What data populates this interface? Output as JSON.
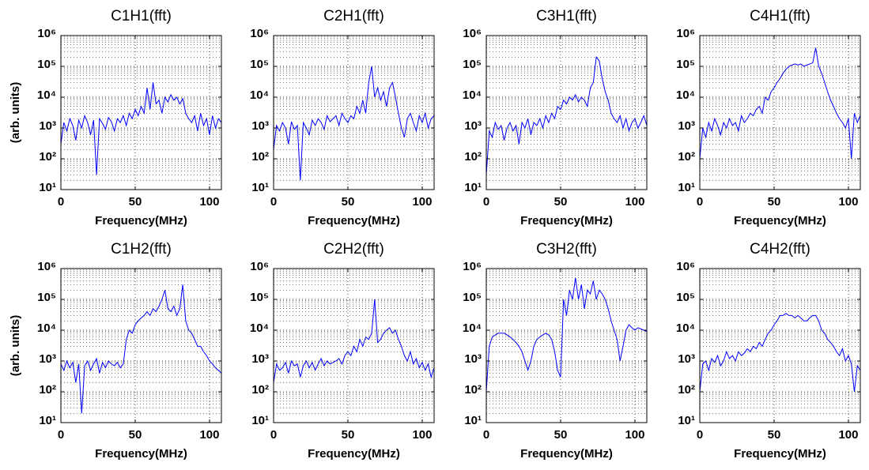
{
  "chart_data": [
    {
      "type": "line",
      "title": "C1H1(fft)",
      "xlabel": "Frequency(MHz)",
      "ylabel": "(arb. units)",
      "color": "#0000ff",
      "yscale": "log",
      "grid": true,
      "xlim": [
        0,
        108
      ],
      "xticks": [
        0,
        50,
        100
      ],
      "ylim": [
        10,
        1000000
      ],
      "yticks": [
        {
          "value": 10,
          "label": "10¹"
        },
        {
          "value": 100,
          "label": "10²"
        },
        {
          "value": 1000,
          "label": "10³"
        },
        {
          "value": 10000,
          "label": "10⁴"
        },
        {
          "value": 100000,
          "label": "10⁵"
        },
        {
          "value": 1000000,
          "label": "10⁶"
        }
      ],
      "x": [
        0,
        2,
        4,
        6,
        8,
        10,
        12,
        14,
        16,
        18,
        20,
        22,
        24,
        26,
        28,
        30,
        32,
        34,
        36,
        38,
        40,
        42,
        44,
        46,
        48,
        50,
        52,
        54,
        56,
        58,
        60,
        62,
        64,
        66,
        68,
        70,
        72,
        74,
        76,
        78,
        80,
        82,
        84,
        86,
        88,
        90,
        92,
        94,
        96,
        98,
        100,
        102,
        104,
        106,
        108
      ],
      "values": [
        300,
        1500,
        800,
        2000,
        1200,
        400,
        1800,
        1000,
        2500,
        1500,
        600,
        1800,
        30,
        2000,
        1400,
        900,
        2200,
        1600,
        800,
        2000,
        1500,
        2500,
        1200,
        3000,
        2000,
        4000,
        2500,
        5000,
        3000,
        20000,
        4000,
        30000,
        6000,
        8000,
        3000,
        10000,
        7000,
        12000,
        8000,
        10000,
        6000,
        9000,
        3000,
        2000,
        1500,
        2500,
        800,
        3000,
        1200,
        2000,
        600,
        2500,
        1000,
        2000,
        1500
      ]
    },
    {
      "type": "line",
      "title": "C2H1(fft)",
      "xlabel": "Frequency(MHz)",
      "color": "#0000ff",
      "yscale": "log",
      "grid": true,
      "xlim": [
        0,
        108
      ],
      "xticks": [
        0,
        50,
        100
      ],
      "ylim": [
        10,
        1000000
      ],
      "yticks": [
        {
          "value": 10,
          "label": "10¹"
        },
        {
          "value": 100,
          "label": "10²"
        },
        {
          "value": 1000,
          "label": "10³"
        },
        {
          "value": 10000,
          "label": "10⁴"
        },
        {
          "value": 100000,
          "label": "10⁵"
        },
        {
          "value": 1000000,
          "label": "10⁶"
        }
      ],
      "x": [
        0,
        2,
        4,
        6,
        8,
        10,
        12,
        14,
        16,
        18,
        20,
        22,
        24,
        26,
        28,
        30,
        32,
        34,
        36,
        38,
        40,
        42,
        44,
        46,
        48,
        50,
        52,
        54,
        56,
        58,
        60,
        62,
        64,
        66,
        68,
        70,
        72,
        74,
        76,
        78,
        80,
        82,
        84,
        86,
        88,
        90,
        92,
        94,
        96,
        98,
        100,
        102,
        104,
        106,
        108
      ],
      "values": [
        200,
        1200,
        800,
        1500,
        1000,
        300,
        1600,
        900,
        1200,
        20,
        1500,
        1000,
        600,
        1800,
        1200,
        2000,
        1500,
        900,
        2500,
        1600,
        2000,
        2500,
        1200,
        3000,
        2000,
        1500,
        2500,
        2000,
        5000,
        3000,
        8000,
        3000,
        30000,
        100000,
        10000,
        20000,
        8000,
        15000,
        5000,
        20000,
        30000,
        10000,
        3000,
        1000,
        500,
        2000,
        3000,
        1500,
        800,
        2500,
        1500,
        3000,
        1000,
        2000,
        2500
      ]
    },
    {
      "type": "line",
      "title": "C3H1(fft)",
      "xlabel": "Frequency(MHz)",
      "color": "#0000ff",
      "yscale": "log",
      "grid": true,
      "xlim": [
        0,
        108
      ],
      "xticks": [
        0,
        50,
        100
      ],
      "ylim": [
        10,
        1000000
      ],
      "yticks": [
        {
          "value": 10,
          "label": "10¹"
        },
        {
          "value": 100,
          "label": "10²"
        },
        {
          "value": 1000,
          "label": "10³"
        },
        {
          "value": 10000,
          "label": "10⁴"
        },
        {
          "value": 100000,
          "label": "10⁵"
        },
        {
          "value": 1000000,
          "label": "10⁶"
        }
      ],
      "x": [
        0,
        2,
        4,
        6,
        8,
        10,
        12,
        14,
        16,
        18,
        20,
        22,
        24,
        26,
        28,
        30,
        32,
        34,
        36,
        38,
        40,
        42,
        44,
        46,
        48,
        50,
        52,
        54,
        56,
        58,
        60,
        62,
        64,
        66,
        68,
        70,
        72,
        74,
        76,
        78,
        80,
        82,
        84,
        86,
        88,
        90,
        92,
        94,
        96,
        98,
        100,
        102,
        104,
        106,
        108
      ],
      "values": [
        30,
        800,
        500,
        1500,
        900,
        1200,
        400,
        1000,
        1500,
        800,
        1200,
        300,
        1500,
        1000,
        2000,
        600,
        1500,
        1200,
        2000,
        1000,
        2500,
        1500,
        3000,
        2000,
        5000,
        4000,
        8000,
        6000,
        10000,
        8000,
        12000,
        7000,
        10000,
        8000,
        5000,
        20000,
        30000,
        200000,
        150000,
        40000,
        15000,
        8000,
        3000,
        2000,
        1500,
        2500,
        1000,
        2000,
        800,
        1500,
        2000,
        1000,
        1500,
        2500,
        1200
      ]
    },
    {
      "type": "line",
      "title": "C4H1(fft)",
      "xlabel": "Frequency(MHz)",
      "color": "#0000ff",
      "yscale": "log",
      "grid": true,
      "xlim": [
        0,
        108
      ],
      "xticks": [
        0,
        50,
        100
      ],
      "ylim": [
        10,
        1000000
      ],
      "yticks": [
        {
          "value": 10,
          "label": "10¹"
        },
        {
          "value": 100,
          "label": "10²"
        },
        {
          "value": 1000,
          "label": "10³"
        },
        {
          "value": 10000,
          "label": "10⁴"
        },
        {
          "value": 100000,
          "label": "10⁵"
        },
        {
          "value": 1000000,
          "label": "10⁶"
        }
      ],
      "x": [
        0,
        2,
        4,
        6,
        8,
        10,
        12,
        14,
        16,
        18,
        20,
        22,
        24,
        26,
        28,
        30,
        32,
        34,
        36,
        38,
        40,
        42,
        44,
        46,
        48,
        50,
        52,
        54,
        56,
        58,
        60,
        62,
        64,
        66,
        68,
        70,
        72,
        74,
        76,
        78,
        80,
        82,
        84,
        86,
        88,
        90,
        92,
        94,
        96,
        98,
        100,
        102,
        104,
        106,
        108
      ],
      "values": [
        100,
        1000,
        500,
        1500,
        800,
        2000,
        1200,
        600,
        1500,
        1000,
        2000,
        1200,
        1500,
        800,
        2500,
        1500,
        2000,
        3000,
        2500,
        4000,
        5000,
        3000,
        10000,
        8000,
        15000,
        20000,
        30000,
        40000,
        60000,
        80000,
        100000,
        110000,
        120000,
        110000,
        120000,
        100000,
        110000,
        120000,
        130000,
        400000,
        100000,
        60000,
        30000,
        15000,
        8000,
        5000,
        3000,
        2000,
        1500,
        1000,
        2000,
        100,
        3000,
        1500,
        2500
      ]
    },
    {
      "type": "line",
      "title": "C1H2(fft)",
      "xlabel": "Frequency(MHz)",
      "ylabel": "(arb. units)",
      "color": "#0000ff",
      "yscale": "log",
      "grid": true,
      "xlim": [
        0,
        108
      ],
      "xticks": [
        0,
        50,
        100
      ],
      "ylim": [
        10,
        1000000
      ],
      "yticks": [
        {
          "value": 10,
          "label": "10¹"
        },
        {
          "value": 100,
          "label": "10²"
        },
        {
          "value": 1000,
          "label": "10³"
        },
        {
          "value": 10000,
          "label": "10⁴"
        },
        {
          "value": 100000,
          "label": "10⁵"
        },
        {
          "value": 1000000,
          "label": "10⁶"
        }
      ],
      "x": [
        0,
        2,
        4,
        6,
        8,
        10,
        12,
        14,
        16,
        18,
        20,
        22,
        24,
        26,
        28,
        30,
        32,
        34,
        36,
        38,
        40,
        42,
        44,
        46,
        48,
        50,
        52,
        54,
        56,
        58,
        60,
        62,
        64,
        66,
        68,
        70,
        72,
        74,
        76,
        78,
        80,
        82,
        84,
        86,
        88,
        90,
        92,
        94,
        96,
        98,
        100,
        102,
        104,
        106,
        108
      ],
      "values": [
        800,
        500,
        1000,
        600,
        900,
        200,
        800,
        20,
        700,
        1000,
        500,
        800,
        1200,
        400,
        900,
        600,
        1000,
        800,
        700,
        900,
        600,
        800,
        5000,
        10000,
        8000,
        15000,
        20000,
        25000,
        30000,
        40000,
        30000,
        50000,
        40000,
        60000,
        100000,
        200000,
        50000,
        40000,
        60000,
        30000,
        50000,
        300000,
        20000,
        10000,
        8000,
        5000,
        3000,
        3000,
        2000,
        1500,
        1000,
        800,
        600,
        500,
        400
      ]
    },
    {
      "type": "line",
      "title": "C2H2(fft)",
      "xlabel": "Frequency(MHz)",
      "color": "#0000ff",
      "yscale": "log",
      "grid": true,
      "xlim": [
        0,
        108
      ],
      "xticks": [
        0,
        50,
        100
      ],
      "ylim": [
        10,
        1000000
      ],
      "yticks": [
        {
          "value": 10,
          "label": "10¹"
        },
        {
          "value": 100,
          "label": "10²"
        },
        {
          "value": 1000,
          "label": "10³"
        },
        {
          "value": 10000,
          "label": "10⁴"
        },
        {
          "value": 100000,
          "label": "10⁵"
        },
        {
          "value": 1000000,
          "label": "10⁶"
        }
      ],
      "x": [
        0,
        2,
        4,
        6,
        8,
        10,
        12,
        14,
        16,
        18,
        20,
        22,
        24,
        26,
        28,
        30,
        32,
        34,
        36,
        38,
        40,
        42,
        44,
        46,
        48,
        50,
        52,
        54,
        56,
        58,
        60,
        62,
        64,
        66,
        68,
        70,
        72,
        74,
        76,
        78,
        80,
        82,
        84,
        86,
        88,
        90,
        92,
        94,
        96,
        98,
        100,
        102,
        104,
        106,
        108
      ],
      "values": [
        200,
        800,
        500,
        600,
        900,
        400,
        1000,
        700,
        800,
        300,
        700,
        1000,
        600,
        900,
        500,
        800,
        1200,
        700,
        1000,
        800,
        900,
        1000,
        1200,
        800,
        1500,
        2000,
        1500,
        3000,
        2000,
        5000,
        3000,
        6000,
        5000,
        8000,
        100000,
        4000,
        5000,
        8000,
        10000,
        12000,
        8000,
        10000,
        5000,
        3000,
        1500,
        1000,
        2000,
        800,
        1200,
        600,
        900,
        500,
        800,
        300,
        600
      ]
    },
    {
      "type": "line",
      "title": "C3H2(fft)",
      "xlabel": "Frequency(MHz)",
      "color": "#0000ff",
      "yscale": "log",
      "grid": true,
      "xlim": [
        0,
        108
      ],
      "xticks": [
        0,
        50,
        100
      ],
      "ylim": [
        10,
        1000000
      ],
      "yticks": [
        {
          "value": 10,
          "label": "10¹"
        },
        {
          "value": 100,
          "label": "10²"
        },
        {
          "value": 1000,
          "label": "10³"
        },
        {
          "value": 10000,
          "label": "10⁴"
        },
        {
          "value": 100000,
          "label": "10⁵"
        },
        {
          "value": 1000000,
          "label": "10⁶"
        }
      ],
      "x": [
        0,
        2,
        4,
        6,
        8,
        10,
        12,
        14,
        16,
        18,
        20,
        22,
        24,
        26,
        28,
        30,
        32,
        34,
        36,
        38,
        40,
        42,
        44,
        46,
        48,
        50,
        52,
        54,
        56,
        58,
        60,
        62,
        64,
        66,
        68,
        70,
        72,
        74,
        76,
        78,
        80,
        82,
        84,
        86,
        88,
        90,
        92,
        94,
        96,
        98,
        100,
        102,
        104,
        106,
        108
      ],
      "values": [
        100,
        3000,
        6000,
        7000,
        8000,
        8000,
        8000,
        7000,
        6000,
        5000,
        4000,
        3000,
        2000,
        1000,
        500,
        1000,
        3000,
        5000,
        6000,
        7000,
        8000,
        7000,
        5000,
        2000,
        500,
        300,
        100000,
        30000,
        200000,
        100000,
        500000,
        100000,
        300000,
        50000,
        200000,
        150000,
        400000,
        100000,
        200000,
        150000,
        100000,
        50000,
        20000,
        10000,
        5000,
        1000,
        3000,
        10000,
        15000,
        12000,
        10000,
        12000,
        11000,
        10000,
        9000
      ]
    },
    {
      "type": "line",
      "title": "C4H2(fft)",
      "xlabel": "Frequency(MHz)",
      "color": "#0000ff",
      "yscale": "log",
      "grid": true,
      "xlim": [
        0,
        108
      ],
      "xticks": [
        0,
        50,
        100
      ],
      "ylim": [
        10,
        1000000
      ],
      "yticks": [
        {
          "value": 10,
          "label": "10¹"
        },
        {
          "value": 100,
          "label": "10²"
        },
        {
          "value": 1000,
          "label": "10³"
        },
        {
          "value": 10000,
          "label": "10⁴"
        },
        {
          "value": 100000,
          "label": "10⁵"
        },
        {
          "value": 1000000,
          "label": "10⁶"
        }
      ],
      "x": [
        0,
        2,
        4,
        6,
        8,
        10,
        12,
        14,
        16,
        18,
        20,
        22,
        24,
        26,
        28,
        30,
        32,
        34,
        36,
        38,
        40,
        42,
        44,
        46,
        48,
        50,
        52,
        54,
        56,
        58,
        60,
        62,
        64,
        66,
        68,
        70,
        72,
        74,
        76,
        78,
        80,
        82,
        84,
        86,
        88,
        90,
        92,
        94,
        96,
        98,
        100,
        102,
        104,
        106,
        108
      ],
      "values": [
        100,
        800,
        1000,
        500,
        1200,
        900,
        1500,
        700,
        1000,
        2000,
        1200,
        1500,
        1000,
        2000,
        1500,
        1800,
        2500,
        2000,
        3000,
        2500,
        4000,
        3000,
        5000,
        8000,
        10000,
        15000,
        20000,
        30000,
        30000,
        35000,
        30000,
        30000,
        25000,
        30000,
        25000,
        20000,
        20000,
        25000,
        30000,
        30000,
        20000,
        10000,
        8000,
        5000,
        4000,
        3000,
        2000,
        1500,
        2500,
        1000,
        1500,
        800,
        100,
        700,
        500
      ]
    }
  ]
}
